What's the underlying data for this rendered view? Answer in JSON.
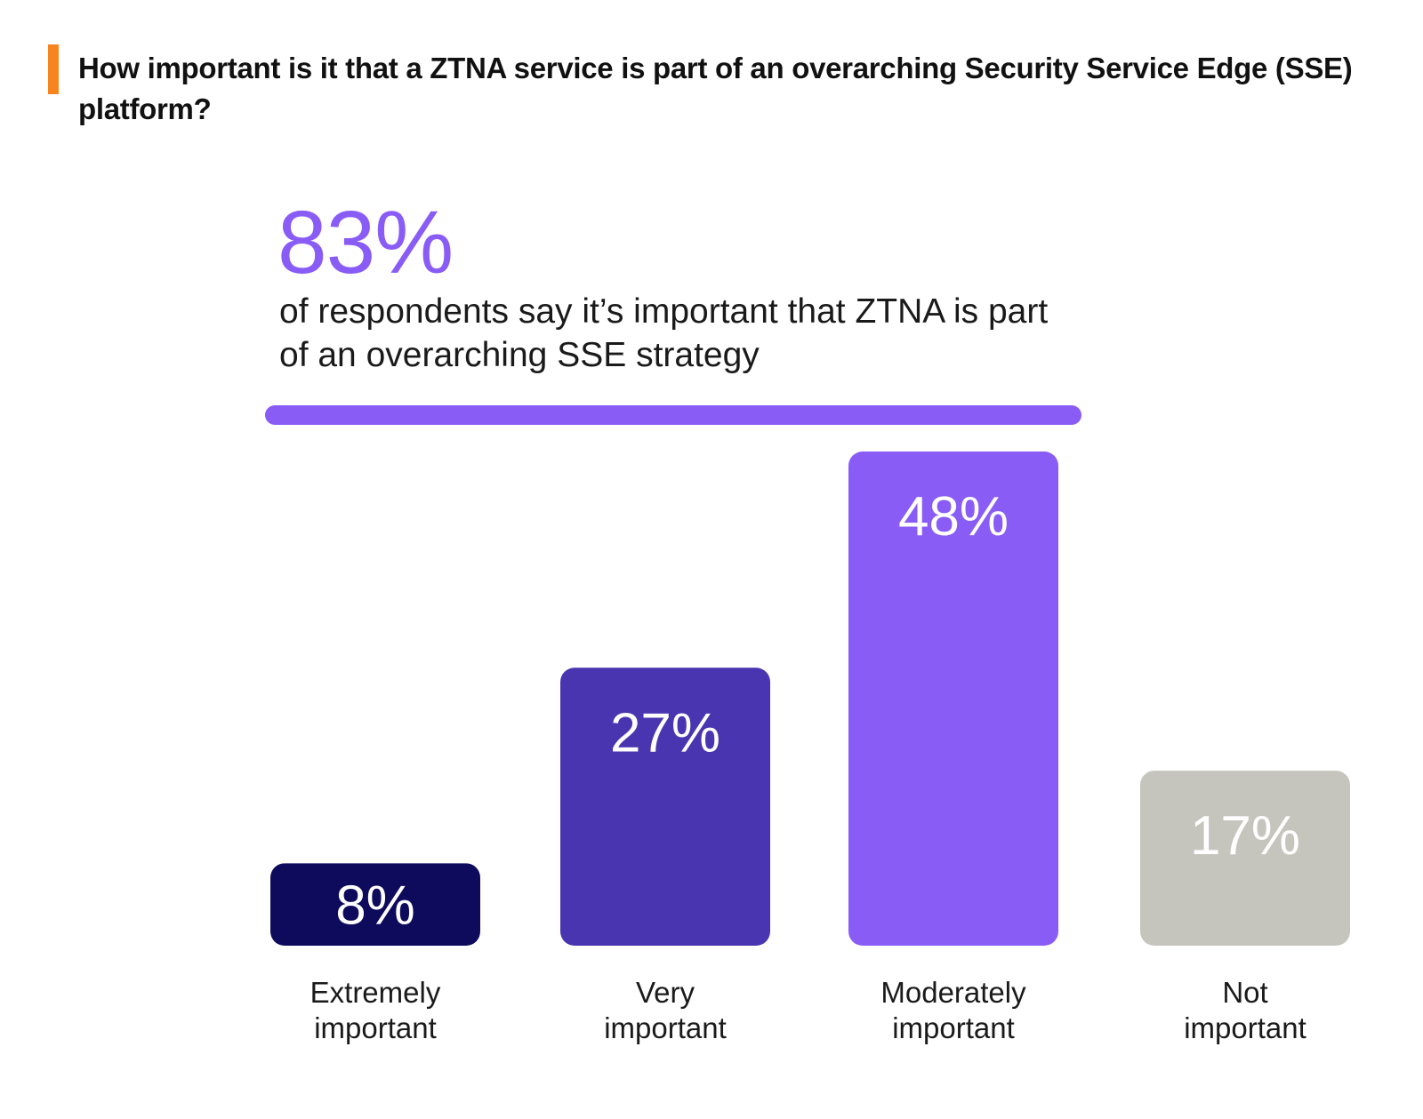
{
  "header": {
    "question": "How important is it that a ZTNA service is part of an overarching Security Service Edge (SSE) platform?",
    "accent_color": "#f7851f"
  },
  "highlight": {
    "stat": "83%",
    "text": "of respondents say it’s important that ZTNA is part of an overarching SSE strategy",
    "color": "#8a5cf6"
  },
  "chart_data": {
    "type": "bar",
    "categories": [
      "Extremely important",
      "Very important",
      "Moderately important",
      "Not important"
    ],
    "category_labels": [
      [
        "Extremely",
        "important"
      ],
      [
        "Very",
        "important"
      ],
      [
        "Moderately",
        "important"
      ],
      [
        "Not",
        "important"
      ]
    ],
    "values": [
      8,
      27,
      48,
      17
    ],
    "data_labels": [
      "8%",
      "27%",
      "48%",
      "17%"
    ],
    "colors": [
      "#0e0b5c",
      "#4a35b0",
      "#8a5cf6",
      "#c6c5bd"
    ],
    "ylim": [
      0,
      48
    ],
    "grid": false,
    "legend": "none"
  }
}
